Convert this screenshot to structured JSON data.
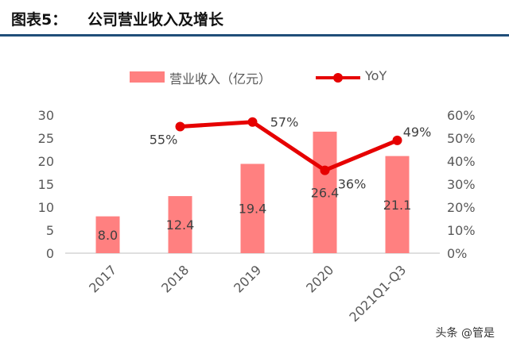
{
  "header": {
    "label": "图表5：",
    "title": "公司营业收入及增长"
  },
  "legend": {
    "bar_label": "营业收入（亿元）",
    "line_label": "YoY"
  },
  "watermark": "头条 @管是",
  "colors": {
    "bar": "#ff8080",
    "line": "#e60000",
    "header_rule": "#1f4e79",
    "axis_text": "#595959"
  },
  "chart_data": {
    "type": "bar",
    "categories": [
      "2017",
      "2018",
      "2019",
      "2020",
      "2021Q1-Q3"
    ],
    "series": [
      {
        "name": "营业收入（亿元）",
        "type": "bar",
        "axis": "left",
        "values": [
          8.0,
          12.4,
          19.4,
          26.4,
          21.1
        ],
        "labels": [
          "8.0",
          "12.4",
          "19.4",
          "26.4",
          "21.1"
        ]
      },
      {
        "name": "YoY",
        "type": "line",
        "axis": "right",
        "values": [
          null,
          0.55,
          0.57,
          0.36,
          0.49
        ],
        "labels": [
          "",
          "55%",
          "57%",
          "36%",
          "49%"
        ]
      }
    ],
    "y_left": {
      "ylim": [
        0,
        30
      ],
      "ticks": [
        0,
        5,
        10,
        15,
        20,
        25,
        30
      ],
      "tick_labels": [
        "0",
        "5",
        "10",
        "15",
        "20",
        "25",
        "30"
      ]
    },
    "y_right": {
      "ylim": [
        0,
        0.6
      ],
      "ticks": [
        0,
        0.1,
        0.2,
        0.3,
        0.4,
        0.5,
        0.6
      ],
      "tick_labels": [
        "0%",
        "10%",
        "20%",
        "30%",
        "40%",
        "50%",
        "60%"
      ]
    },
    "legend_position": "top",
    "grid": false
  }
}
